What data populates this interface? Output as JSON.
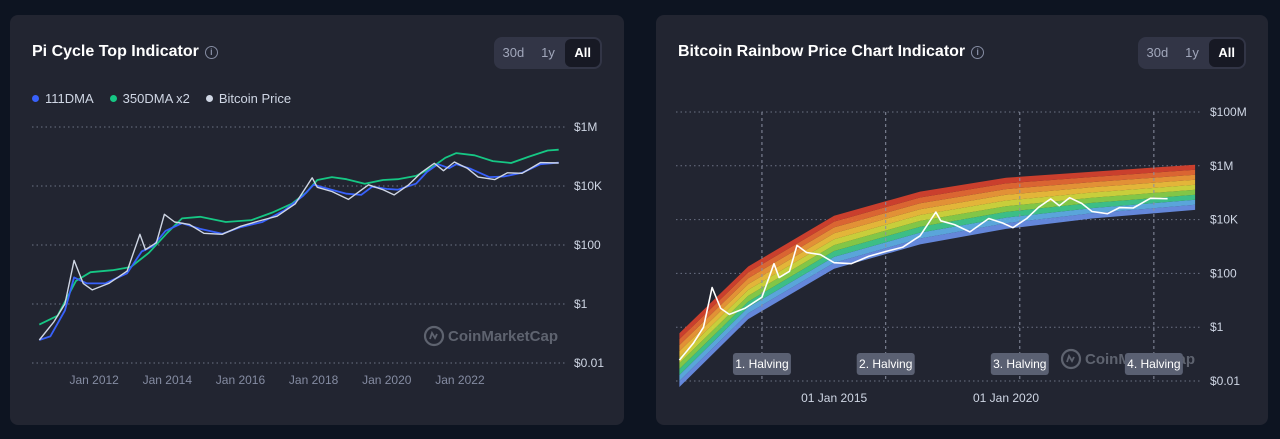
{
  "pi_cycle": {
    "title": "Pi Cycle Top Indicator",
    "range_buttons": [
      "30d",
      "1y",
      "All"
    ],
    "active_range": "All",
    "watermark": "CoinMarketCap",
    "chart_data": {
      "type": "line",
      "title": "Pi Cycle Top Indicator",
      "yscale": "log",
      "y_ticks": [
        "$1M",
        "$10K",
        "$100",
        "$1",
        "$0.01"
      ],
      "y_tick_values": [
        1000000,
        10000,
        100,
        1,
        0.01
      ],
      "x_ticks": [
        "Jan 2012",
        "Jan 2014",
        "Jan 2016",
        "Jan 2018",
        "Jan 2020",
        "Jan 2022"
      ],
      "x_tick_years": [
        2012,
        2014,
        2016,
        2018,
        2020,
        2022
      ],
      "xlim_years": [
        2010.3,
        2024.9
      ],
      "ylim": [
        0.01,
        1000000
      ],
      "grid": "horizontal dotted",
      "legend_placement": "top-left",
      "series": [
        {
          "name": "111DMA",
          "color": "#3861fb",
          "x": [
            2010.5,
            2010.8,
            2011.2,
            2011.45,
            2011.8,
            2012.3,
            2012.9,
            2013.3,
            2013.6,
            2013.95,
            2014.4,
            2014.9,
            2015.5,
            2016.0,
            2016.6,
            2017.2,
            2017.7,
            2018.0,
            2018.4,
            2018.9,
            2019.3,
            2019.6,
            2020.0,
            2020.3,
            2020.8,
            2021.1,
            2021.4,
            2021.7,
            2021.9,
            2022.3,
            2022.8,
            2023.2,
            2023.7,
            2024.2,
            2024.7
          ],
          "y": [
            0.06,
            0.08,
            0.6,
            8,
            5,
            5,
            11,
            60,
            90,
            300,
            550,
            350,
            240,
            400,
            600,
            1500,
            4500,
            11000,
            8000,
            5500,
            5000,
            9500,
            8000,
            7500,
            12000,
            30000,
            55000,
            40000,
            55000,
            38000,
            20000,
            21000,
            28000,
            55000,
            62000
          ]
        },
        {
          "name": "350DMA x2",
          "color": "#16c784",
          "x": [
            2010.5,
            2011.0,
            2011.5,
            2011.9,
            2012.5,
            2013.0,
            2013.5,
            2014.0,
            2014.4,
            2014.9,
            2015.6,
            2016.3,
            2016.9,
            2017.4,
            2017.8,
            2018.1,
            2018.5,
            2018.9,
            2019.4,
            2019.9,
            2020.3,
            2020.8,
            2021.2,
            2021.6,
            2021.9,
            2022.4,
            2022.9,
            2023.4,
            2023.9,
            2024.4,
            2024.7
          ],
          "y": [
            0.2,
            0.4,
            6,
            12,
            14,
            18,
            55,
            260,
            800,
            900,
            600,
            700,
            1300,
            2500,
            6000,
            16000,
            20000,
            17000,
            12000,
            16000,
            17000,
            22000,
            40000,
            90000,
            130000,
            110000,
            70000,
            60000,
            100000,
            160000,
            170000
          ]
        },
        {
          "name": "Bitcoin Price",
          "color": "#cfd6e4",
          "x": [
            2010.5,
            2010.9,
            2011.2,
            2011.45,
            2011.7,
            2011.95,
            2012.4,
            2012.9,
            2013.25,
            2013.4,
            2013.7,
            2013.92,
            2014.2,
            2014.6,
            2015.0,
            2015.5,
            2016.0,
            2016.5,
            2017.0,
            2017.5,
            2017.96,
            2018.1,
            2018.5,
            2018.95,
            2019.5,
            2019.9,
            2020.2,
            2020.6,
            2020.95,
            2021.3,
            2021.55,
            2021.85,
            2022.2,
            2022.5,
            2022.95,
            2023.3,
            2023.7,
            2024.2,
            2024.7
          ],
          "y": [
            0.06,
            0.25,
            1,
            30,
            5,
            3,
            5,
            13,
            230,
            70,
            120,
            1100,
            600,
            500,
            250,
            230,
            430,
            650,
            950,
            2500,
            19000,
            9000,
            6500,
            3500,
            11000,
            7500,
            5000,
            11000,
            29000,
            59000,
            33000,
            65000,
            40000,
            20000,
            16500,
            28000,
            27000,
            62000,
            60000
          ]
        }
      ]
    }
  },
  "rainbow": {
    "title": "Bitcoin Rainbow Price Chart Indicator",
    "range_buttons": [
      "30d",
      "1y",
      "All"
    ],
    "active_range": "All",
    "watermark": "CoinMarketCap",
    "chart_data": {
      "type": "area",
      "title": "Bitcoin Rainbow Price Chart Indicator",
      "yscale": "log",
      "y_ticks": [
        "$100M",
        "$1M",
        "$10K",
        "$100",
        "$1",
        "$0.01"
      ],
      "y_tick_values": [
        100000000,
        1000000,
        10000,
        100,
        1,
        0.01
      ],
      "x_ticks": [
        "01 Jan 2015",
        "01 Jan 2020"
      ],
      "x_tick_years": [
        2015.0,
        2020.0
      ],
      "xlim_years": [
        2010.4,
        2025.7
      ],
      "ylim": [
        0.01,
        100000000
      ],
      "grid": "horizontal dotted",
      "halvings": [
        {
          "label": "1. Halving",
          "x": 2012.9
        },
        {
          "label": "2. Halving",
          "x": 2016.5
        },
        {
          "label": "3. Halving",
          "x": 2020.4
        },
        {
          "label": "4. Halving",
          "x": 2024.3
        }
      ],
      "bands": {
        "colors": [
          "#6a8fe8",
          "#5fb0e8",
          "#3fcb8e",
          "#8bd449",
          "#d7dc3c",
          "#f4c13a",
          "#f39a36",
          "#ea6a32",
          "#d9412c"
        ],
        "x": [
          2010.5,
          2012.5,
          2015.0,
          2017.5,
          2020.0,
          2022.5,
          2025.5
        ],
        "lower": [
          0.006,
          2,
          150,
          1200,
          4500,
          11000,
          23000
        ],
        "upper": [
          0.6,
          180,
          14000,
          110000,
          360000,
          600000,
          1100000
        ]
      },
      "series": [
        {
          "name": "Bitcoin Price",
          "color": "#ffffff",
          "x": [
            2010.5,
            2010.9,
            2011.2,
            2011.45,
            2011.7,
            2011.95,
            2012.4,
            2012.9,
            2013.25,
            2013.4,
            2013.7,
            2013.92,
            2014.2,
            2014.6,
            2015.0,
            2015.5,
            2016.0,
            2016.5,
            2017.0,
            2017.5,
            2017.96,
            2018.1,
            2018.5,
            2018.95,
            2019.5,
            2019.9,
            2020.2,
            2020.6,
            2020.95,
            2021.3,
            2021.55,
            2021.85,
            2022.2,
            2022.5,
            2022.95,
            2023.3,
            2023.7,
            2024.2,
            2024.7
          ],
          "y": [
            0.06,
            0.25,
            1,
            30,
            5,
            3,
            5,
            13,
            230,
            70,
            120,
            1100,
            600,
            500,
            250,
            230,
            430,
            650,
            950,
            2500,
            19000,
            9000,
            6500,
            3500,
            11000,
            7500,
            5000,
            11000,
            29000,
            59000,
            33000,
            65000,
            40000,
            20000,
            16500,
            28000,
            27000,
            62000,
            60000
          ]
        }
      ]
    }
  }
}
